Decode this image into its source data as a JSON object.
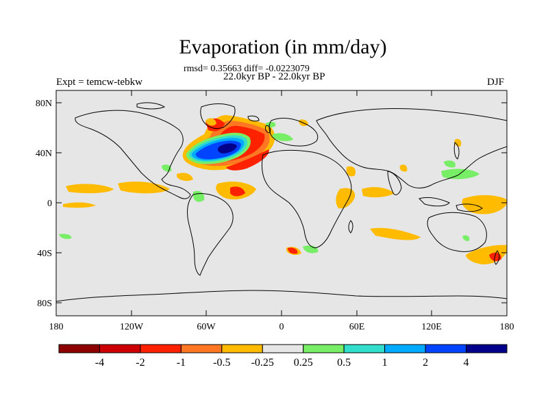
{
  "title": "Evaporation (in mm/day)",
  "subtitle_stats": "rmsd= 0.35663 diff= -0.0223079",
  "subtitle_period": "22.0kyr BP - 22.0kyr BP",
  "left_label": "Expt = temcw-tebkw",
  "right_label": "DJF",
  "y_ticks": [
    "80N",
    "40N",
    "0",
    "40S",
    "80S"
  ],
  "x_ticks": [
    "180",
    "120W",
    "60W",
    "0",
    "60E",
    "120E",
    "180"
  ],
  "colorbar": {
    "labels": [
      "-4",
      "-2",
      "-1",
      "-0.5",
      "-0.25",
      "0.25",
      "0.5",
      "1",
      "2",
      "4"
    ],
    "colors": [
      "#8b0000",
      "#cc0000",
      "#ff2200",
      "#ff7722",
      "#ffbb00",
      "#e6e6e6",
      "#77ee66",
      "#33ddcc",
      "#00aaff",
      "#0044ff",
      "#00008b"
    ]
  },
  "colors": {
    "land_ocean_bg": "#e6e6e6",
    "coast": "#000000"
  }
}
